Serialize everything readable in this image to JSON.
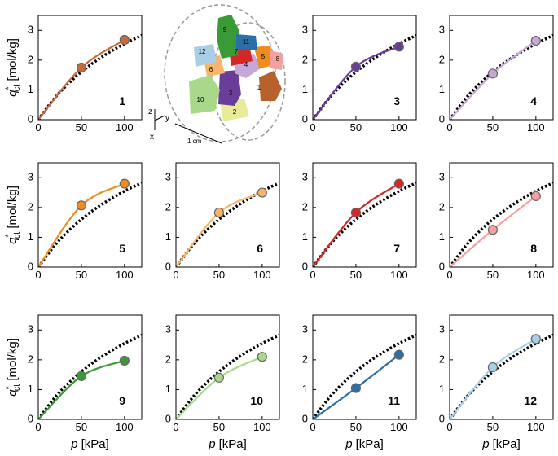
{
  "ylabel": {
    "symbol": "q",
    "sup": "*",
    "sub": "ct",
    "unit": "[mol/kg]"
  },
  "xlabel": {
    "symbol": "p",
    "unit": "[kPa]"
  },
  "inset": {
    "labels": [
      "1",
      "2",
      "3",
      "4",
      "5",
      "6",
      "7",
      "8",
      "9",
      "10",
      "11",
      "12"
    ],
    "scale": "1 cm",
    "axes": [
      "z",
      "y",
      "x"
    ]
  },
  "chart_data": [
    {
      "type": "line",
      "label": "1",
      "xlim": [
        0,
        120
      ],
      "ylim": [
        0,
        3.5
      ],
      "xticks": [
        0,
        50,
        100
      ],
      "yticks": [
        0,
        1,
        2,
        3
      ],
      "series": [
        {
          "color": "#000000",
          "style": "dotted",
          "x": [
            0,
            20,
            40,
            60,
            80,
            100,
            120
          ],
          "values": [
            0,
            0.76,
            1.35,
            1.83,
            2.22,
            2.55,
            2.83
          ]
        },
        {
          "color": "#c8693a",
          "style": "curve",
          "x": [
            0,
            50,
            100
          ],
          "values": [
            0,
            1.75,
            2.68
          ]
        },
        {
          "color": "#c8693a",
          "style": "points",
          "x": [
            50,
            100
          ],
          "values": [
            1.75,
            2.68
          ]
        }
      ]
    },
    {
      "type": "line",
      "label": "3",
      "xlim": [
        0,
        120
      ],
      "ylim": [
        0,
        3.5
      ],
      "xticks": [
        0,
        50,
        100
      ],
      "yticks": [
        0,
        1,
        2,
        3
      ],
      "series": [
        {
          "color": "#000000",
          "style": "dotted",
          "x": [
            0,
            20,
            40,
            60,
            80,
            100,
            120
          ],
          "values": [
            0,
            0.76,
            1.35,
            1.83,
            2.22,
            2.55,
            2.83
          ]
        },
        {
          "color": "#6a3d9a",
          "style": "curve",
          "x": [
            0,
            50,
            100
          ],
          "values": [
            0,
            1.78,
            2.45
          ]
        },
        {
          "color": "#6a3d9a",
          "style": "points",
          "x": [
            50,
            100
          ],
          "values": [
            1.78,
            2.45
          ]
        }
      ]
    },
    {
      "type": "line",
      "label": "4",
      "xlim": [
        0,
        120
      ],
      "ylim": [
        0,
        3.5
      ],
      "xticks": [
        0,
        50,
        100
      ],
      "yticks": [
        0,
        1,
        2,
        3
      ],
      "series": [
        {
          "color": "#000000",
          "style": "dotted",
          "x": [
            0,
            20,
            40,
            60,
            80,
            100,
            120
          ],
          "values": [
            0,
            0.76,
            1.35,
            1.83,
            2.22,
            2.55,
            2.83
          ]
        },
        {
          "color": "#c5a8d8",
          "style": "curve",
          "x": [
            0,
            50,
            100
          ],
          "values": [
            0,
            1.55,
            2.65
          ]
        },
        {
          "color": "#c5a8d8",
          "style": "points",
          "x": [
            50,
            100
          ],
          "values": [
            1.55,
            2.65
          ]
        }
      ]
    },
    {
      "type": "line",
      "label": "5",
      "xlim": [
        0,
        120
      ],
      "ylim": [
        0,
        3.5
      ],
      "xticks": [
        0,
        50,
        100
      ],
      "yticks": [
        0,
        1,
        2,
        3
      ],
      "series": [
        {
          "color": "#000000",
          "style": "dotted",
          "x": [
            0,
            20,
            40,
            60,
            80,
            100,
            120
          ],
          "values": [
            0,
            0.76,
            1.35,
            1.83,
            2.22,
            2.55,
            2.83
          ]
        },
        {
          "color": "#f08c1e",
          "style": "curve",
          "x": [
            0,
            50,
            100
          ],
          "values": [
            0,
            2.07,
            2.8
          ]
        },
        {
          "color": "#f08c1e",
          "style": "points",
          "x": [
            50,
            100
          ],
          "values": [
            2.07,
            2.8
          ]
        }
      ]
    },
    {
      "type": "line",
      "label": "6",
      "xlim": [
        0,
        120
      ],
      "ylim": [
        0,
        3.5
      ],
      "xticks": [
        0,
        50,
        100
      ],
      "yticks": [
        0,
        1,
        2,
        3
      ],
      "series": [
        {
          "color": "#000000",
          "style": "dotted",
          "x": [
            0,
            20,
            40,
            60,
            80,
            100,
            120
          ],
          "values": [
            0,
            0.76,
            1.35,
            1.83,
            2.22,
            2.55,
            2.83
          ]
        },
        {
          "color": "#f7b56a",
          "style": "curve",
          "x": [
            0,
            50,
            100
          ],
          "values": [
            0,
            1.83,
            2.5
          ]
        },
        {
          "color": "#f7b56a",
          "style": "points",
          "x": [
            50,
            100
          ],
          "values": [
            1.83,
            2.5
          ]
        }
      ]
    },
    {
      "type": "line",
      "label": "7",
      "xlim": [
        0,
        120
      ],
      "ylim": [
        0,
        3.5
      ],
      "xticks": [
        0,
        50,
        100
      ],
      "yticks": [
        0,
        1,
        2,
        3
      ],
      "series": [
        {
          "color": "#000000",
          "style": "dotted",
          "x": [
            0,
            20,
            40,
            60,
            80,
            100,
            120
          ],
          "values": [
            0,
            0.76,
            1.35,
            1.83,
            2.22,
            2.55,
            2.83
          ]
        },
        {
          "color": "#d62728",
          "style": "curve",
          "x": [
            0,
            50,
            100
          ],
          "values": [
            0,
            1.83,
            2.8
          ]
        },
        {
          "color": "#d62728",
          "style": "points",
          "x": [
            50,
            100
          ],
          "values": [
            1.83,
            2.8
          ]
        }
      ]
    },
    {
      "type": "line",
      "label": "8",
      "xlim": [
        0,
        120
      ],
      "ylim": [
        0,
        3.5
      ],
      "xticks": [
        0,
        50,
        100
      ],
      "yticks": [
        0,
        1,
        2,
        3
      ],
      "series": [
        {
          "color": "#000000",
          "style": "dotted",
          "x": [
            0,
            20,
            40,
            60,
            80,
            100,
            120
          ],
          "values": [
            0,
            0.76,
            1.35,
            1.83,
            2.22,
            2.55,
            2.83
          ]
        },
        {
          "color": "#f4a0a0",
          "style": "curve",
          "x": [
            0,
            50,
            100
          ],
          "values": [
            0,
            1.25,
            2.38
          ]
        },
        {
          "color": "#f4a0a0",
          "style": "points",
          "x": [
            50,
            100
          ],
          "values": [
            1.25,
            2.38
          ]
        }
      ]
    },
    {
      "type": "line",
      "label": "9",
      "xlim": [
        0,
        120
      ],
      "ylim": [
        0,
        3.5
      ],
      "xticks": [
        0,
        50,
        100
      ],
      "yticks": [
        0,
        1,
        2,
        3
      ],
      "series": [
        {
          "color": "#000000",
          "style": "dotted",
          "x": [
            0,
            20,
            40,
            60,
            80,
            100,
            120
          ],
          "values": [
            0,
            0.76,
            1.35,
            1.83,
            2.22,
            2.55,
            2.83
          ]
        },
        {
          "color": "#3a9a35",
          "style": "curve",
          "x": [
            0,
            50,
            100
          ],
          "values": [
            0,
            1.45,
            1.97
          ]
        },
        {
          "color": "#3a9a35",
          "style": "points",
          "x": [
            50,
            100
          ],
          "values": [
            1.45,
            1.97
          ]
        }
      ]
    },
    {
      "type": "line",
      "label": "10",
      "xlim": [
        0,
        120
      ],
      "ylim": [
        0,
        3.5
      ],
      "xticks": [
        0,
        50,
        100
      ],
      "yticks": [
        0,
        1,
        2,
        3
      ],
      "series": [
        {
          "color": "#000000",
          "style": "dotted",
          "x": [
            0,
            20,
            40,
            60,
            80,
            100,
            120
          ],
          "values": [
            0,
            0.76,
            1.35,
            1.83,
            2.22,
            2.55,
            2.83
          ]
        },
        {
          "color": "#a8d88a",
          "style": "curve",
          "x": [
            0,
            50,
            100
          ],
          "values": [
            0,
            1.4,
            2.1
          ]
        },
        {
          "color": "#a8d88a",
          "style": "points",
          "x": [
            50,
            100
          ],
          "values": [
            1.4,
            2.1
          ]
        }
      ]
    },
    {
      "type": "line",
      "label": "11",
      "xlim": [
        0,
        120
      ],
      "ylim": [
        0,
        3.5
      ],
      "xticks": [
        0,
        50,
        100
      ],
      "yticks": [
        0,
        1,
        2,
        3
      ],
      "series": [
        {
          "color": "#000000",
          "style": "dotted",
          "x": [
            0,
            20,
            40,
            60,
            80,
            100,
            120
          ],
          "values": [
            0,
            0.76,
            1.35,
            1.83,
            2.22,
            2.55,
            2.83
          ]
        },
        {
          "color": "#2a6fa8",
          "style": "curve",
          "x": [
            0,
            50,
            100
          ],
          "values": [
            0,
            1.05,
            2.17
          ]
        },
        {
          "color": "#2a6fa8",
          "style": "points",
          "x": [
            50,
            100
          ],
          "values": [
            1.05,
            2.17
          ]
        }
      ]
    },
    {
      "type": "line",
      "label": "12",
      "xlim": [
        0,
        120
      ],
      "ylim": [
        0,
        3.5
      ],
      "xticks": [
        0,
        50,
        100
      ],
      "yticks": [
        0,
        1,
        2,
        3
      ],
      "series": [
        {
          "color": "#000000",
          "style": "dotted",
          "x": [
            0,
            20,
            40,
            60,
            80,
            100,
            120
          ],
          "values": [
            0,
            0.76,
            1.35,
            1.83,
            2.22,
            2.55,
            2.83
          ]
        },
        {
          "color": "#a8cfe6",
          "style": "curve",
          "x": [
            0,
            50,
            100
          ],
          "values": [
            0,
            1.75,
            2.7
          ]
        },
        {
          "color": "#a8cfe6",
          "style": "points",
          "x": [
            50,
            100
          ],
          "values": [
            1.75,
            2.7
          ]
        }
      ]
    }
  ]
}
